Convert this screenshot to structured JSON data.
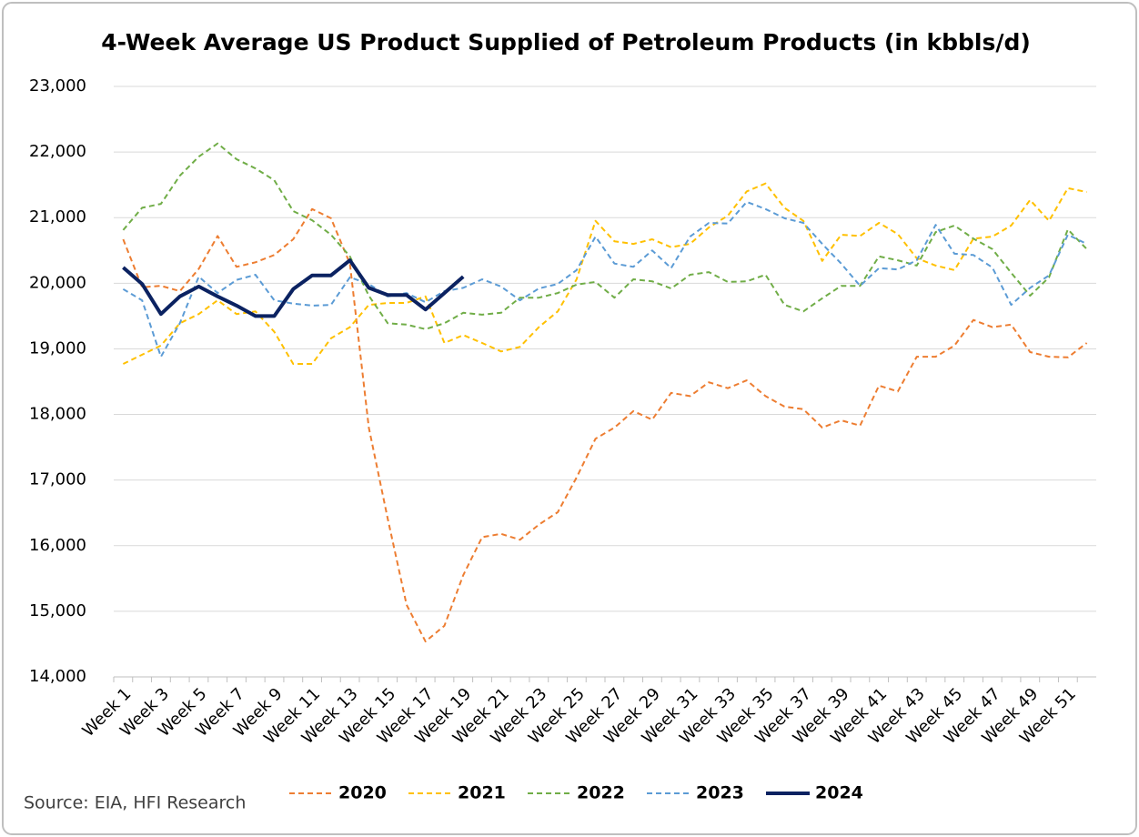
{
  "chart_data": {
    "type": "line",
    "title": "4-Week Average US Product Supplied of Petroleum Products (in kbbls/d)",
    "source": "Source: EIA, HFI Research",
    "categories": [
      "Week 1",
      null,
      "Week 3",
      null,
      "Week 5",
      null,
      "Week 7",
      null,
      "Week 9",
      null,
      "Week 11",
      null,
      "Week 13",
      null,
      "Week 15",
      null,
      "Week 17",
      null,
      "Week 19",
      null,
      "Week 21",
      null,
      "Week 23",
      null,
      "Week 25",
      null,
      "Week 27",
      null,
      "Week 29",
      null,
      "Week 31",
      null,
      "Week 33",
      null,
      "Week 35",
      null,
      "Week 37",
      null,
      "Week 39",
      null,
      "Week 41",
      null,
      "Week 43",
      null,
      "Week 45",
      null,
      "Week 47",
      null,
      "Week 49",
      null,
      "Week 51",
      null
    ],
    "ylim": [
      14000,
      23000
    ],
    "yticks": [
      {
        "value": 14000,
        "label": "14,000"
      },
      {
        "value": 15000,
        "label": "15,000"
      },
      {
        "value": 16000,
        "label": "16,000"
      },
      {
        "value": 17000,
        "label": "17,000"
      },
      {
        "value": 18000,
        "label": "18,000"
      },
      {
        "value": 19000,
        "label": "19,000"
      },
      {
        "value": 20000,
        "label": "20,000"
      },
      {
        "value": 21000,
        "label": "21,000"
      },
      {
        "value": 22000,
        "label": "22,000"
      },
      {
        "value": 23000,
        "label": "23,000"
      }
    ],
    "grid": true,
    "legend": "bottom",
    "series": [
      {
        "name": "2020",
        "color": "#ed7d31",
        "style": "dashed",
        "values": [
          20670,
          19940,
          19960,
          19880,
          20220,
          20720,
          20250,
          20320,
          20430,
          20670,
          21130,
          20990,
          20300,
          17800,
          16410,
          15100,
          14540,
          14780,
          15550,
          16130,
          16180,
          16090,
          16320,
          16510,
          17040,
          17630,
          17800,
          18050,
          17920,
          18330,
          18280,
          18490,
          18400,
          18520,
          18280,
          18120,
          18080,
          17800,
          17910,
          17830,
          18440,
          18350,
          18880,
          18880,
          19050,
          19440,
          19330,
          19370,
          18950,
          18880,
          18870,
          19090
        ]
      },
      {
        "name": "2021",
        "color": "#ffc000",
        "style": "dashed",
        "values": [
          18770,
          18910,
          19050,
          19390,
          19530,
          19740,
          19530,
          19570,
          19260,
          18770,
          18770,
          19160,
          19330,
          19670,
          19700,
          19700,
          19800,
          19090,
          19210,
          19090,
          18960,
          19030,
          19330,
          19570,
          20060,
          20950,
          20640,
          20600,
          20670,
          20550,
          20600,
          20850,
          21030,
          21400,
          21520,
          21150,
          20950,
          20340,
          20740,
          20720,
          20920,
          20750,
          20380,
          20270,
          20200,
          20680,
          20710,
          20880,
          21270,
          20950,
          21450,
          21390
        ]
      },
      {
        "name": "2022",
        "color": "#70ad47",
        "style": "dashed",
        "values": [
          20810,
          21150,
          21210,
          21640,
          21930,
          22130,
          21890,
          21750,
          21570,
          21100,
          20960,
          20740,
          20410,
          19810,
          19390,
          19370,
          19300,
          19390,
          19550,
          19520,
          19550,
          19780,
          19780,
          19850,
          19980,
          20020,
          19780,
          20060,
          20030,
          19920,
          20130,
          20170,
          20020,
          20030,
          20130,
          19670,
          19570,
          19770,
          19960,
          19960,
          20410,
          20350,
          20270,
          20780,
          20880,
          20680,
          20520,
          20160,
          19810,
          20090,
          20820,
          20520
        ]
      },
      {
        "name": "2023",
        "color": "#5b9bd5",
        "style": "dashed",
        "values": [
          19910,
          19740,
          18880,
          19390,
          20100,
          19850,
          20050,
          20130,
          19740,
          19690,
          19660,
          19670,
          20090,
          19990,
          19800,
          19850,
          19710,
          19880,
          19930,
          20060,
          19950,
          19740,
          19920,
          19990,
          20200,
          20710,
          20300,
          20250,
          20500,
          20230,
          20710,
          20920,
          20910,
          21240,
          21130,
          20990,
          20920,
          20600,
          20300,
          19960,
          20230,
          20210,
          20350,
          20890,
          20450,
          20430,
          20240,
          19670,
          19930,
          20120,
          20740,
          20600
        ]
      },
      {
        "name": "2024",
        "color": "#0b2261",
        "style": "solid",
        "values": [
          20240,
          19990,
          19530,
          19800,
          19950,
          19800,
          19660,
          19500,
          19500,
          19910,
          20120,
          20120,
          20350,
          19930,
          19820,
          19820,
          19600,
          19850,
          20100,
          null,
          null,
          null,
          null,
          null,
          null,
          null,
          null,
          null,
          null,
          null,
          null,
          null,
          null,
          null,
          null,
          null,
          null,
          null,
          null,
          null,
          null,
          null,
          null,
          null,
          null,
          null,
          null,
          null,
          null,
          null,
          null,
          null
        ]
      }
    ]
  }
}
